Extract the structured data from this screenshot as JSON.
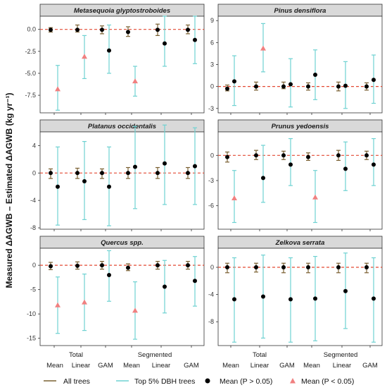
{
  "colors": {
    "all_trees": "#7a6032",
    "top5": "#6fd2d2",
    "mean_ns": "#000000",
    "mean_sig": "#f08080",
    "zero_line": "#e34a33"
  },
  "y_axis_label": "Measured ΔAGWB – Estimated ΔAGWB (kg yr⁻¹)",
  "x_axis": {
    "method_labels": [
      "Mean",
      "Linear",
      "GAM",
      "Mean",
      "Linear",
      "GAM"
    ],
    "group_labels": [
      "Total",
      "Segmented"
    ]
  },
  "legend": {
    "all_trees": "All trees",
    "top5": "Top 5% DBH trees",
    "mean_ns": "Mean (P > 0.05)",
    "mean_sig": "Mean (P < 0.05)"
  },
  "chart_data": [
    {
      "type": "errorbar",
      "title": "Metasequoia glyptostroboides",
      "ylim": [
        -9.5,
        1.5
      ],
      "yticks": [
        0.0,
        -2.5,
        -5.0,
        -7.5
      ],
      "ytick_labels": [
        "0.0",
        "-2.5",
        "-5.0",
        "-7.5"
      ],
      "categories": [
        "Total Mean",
        "Total Linear",
        "Total GAM",
        "Segmented Mean",
        "Segmented Linear",
        "Segmented GAM"
      ],
      "all_trees": [
        {
          "lo": -0.3,
          "hi": 0.2,
          "mean": -0.05
        },
        {
          "lo": -0.3,
          "hi": 0.5,
          "mean": -0.05
        },
        {
          "lo": -0.5,
          "hi": 0.4,
          "mean": -0.05
        },
        {
          "lo": -0.8,
          "hi": 0.3,
          "mean": -0.3
        },
        {
          "lo": -0.7,
          "hi": 0.6,
          "mean": -0.05
        },
        {
          "lo": -0.5,
          "hi": 0.5,
          "mean": -0.05
        }
      ],
      "top5": [
        {
          "lo": -9.2,
          "hi": -4.1,
          "mean": -6.8,
          "sig": true
        },
        {
          "lo": -5.6,
          "hi": -0.7,
          "mean": -3.1,
          "sig": true
        },
        {
          "lo": -5.0,
          "hi": 0.5,
          "mean": -2.4,
          "sig": false
        },
        {
          "lo": -7.6,
          "hi": -4.2,
          "mean": -5.9,
          "sig": true
        },
        {
          "lo": -4.2,
          "hi": 1.5,
          "mean": -1.6,
          "sig": false
        },
        {
          "lo": -3.9,
          "hi": 1.5,
          "mean": -1.2,
          "sig": false
        }
      ]
    },
    {
      "type": "errorbar",
      "title": "Pinus densiflora",
      "ylim": [
        -3.6,
        9.6
      ],
      "yticks": [
        9,
        6,
        3,
        0,
        -3
      ],
      "ytick_labels": [
        "9",
        "6",
        "3",
        "0",
        "-3"
      ],
      "categories": [
        "Total Mean",
        "Total Linear",
        "Total GAM",
        "Segmented Mean",
        "Segmented Linear",
        "Segmented GAM"
      ],
      "all_trees": [
        {
          "lo": -0.6,
          "hi": 0.2,
          "mean": -0.3
        },
        {
          "lo": -0.5,
          "hi": 0.6,
          "mean": 0.0
        },
        {
          "lo": -0.3,
          "hi": 0.6,
          "mean": 0.0
        },
        {
          "lo": -0.5,
          "hi": 0.5,
          "mean": 0.0
        },
        {
          "lo": -0.6,
          "hi": 0.6,
          "mean": 0.0
        },
        {
          "lo": -0.5,
          "hi": 0.5,
          "mean": 0.0
        }
      ],
      "top5": [
        {
          "lo": -2.6,
          "hi": 4.2,
          "mean": 0.7,
          "sig": false
        },
        {
          "lo": 2.0,
          "hi": 8.6,
          "mean": 5.2,
          "sig": true
        },
        {
          "lo": -2.8,
          "hi": 3.8,
          "mean": 0.3,
          "sig": false
        },
        {
          "lo": -1.8,
          "hi": 5.0,
          "mean": 1.6,
          "sig": false
        },
        {
          "lo": -3.0,
          "hi": 3.4,
          "mean": 0.1,
          "sig": false
        },
        {
          "lo": -2.3,
          "hi": 4.3,
          "mean": 0.9,
          "sig": false
        }
      ]
    },
    {
      "type": "errorbar",
      "title": "Platanus occidentalis",
      "ylim": [
        -8.2,
        6.0
      ],
      "yticks": [
        4,
        0,
        -4,
        -8
      ],
      "ytick_labels": [
        "4",
        "0",
        "-4",
        "-8"
      ],
      "categories": [
        "Total Mean",
        "Total Linear",
        "Total GAM",
        "Segmented Mean",
        "Segmented Linear",
        "Segmented GAM"
      ],
      "all_trees": [
        {
          "lo": -0.8,
          "hi": 0.6,
          "mean": 0.0
        },
        {
          "lo": -0.8,
          "hi": 0.7,
          "mean": 0.0
        },
        {
          "lo": -0.8,
          "hi": 0.6,
          "mean": 0.0
        },
        {
          "lo": -0.8,
          "hi": 0.8,
          "mean": 0.0
        },
        {
          "lo": -0.8,
          "hi": 0.8,
          "mean": 0.0
        },
        {
          "lo": -0.8,
          "hi": 0.8,
          "mean": 0.0
        }
      ],
      "top5": [
        {
          "lo": -7.6,
          "hi": 3.8,
          "mean": -2.0,
          "sig": false
        },
        {
          "lo": -6.8,
          "hi": 4.6,
          "mean": -1.2,
          "sig": false
        },
        {
          "lo": -7.7,
          "hi": 3.8,
          "mean": -2.0,
          "sig": false
        },
        {
          "lo": -5.2,
          "hi": 6.8,
          "mean": 0.9,
          "sig": false
        },
        {
          "lo": -4.6,
          "hi": 7.0,
          "mean": 1.4,
          "sig": false
        },
        {
          "lo": -4.6,
          "hi": 6.6,
          "mean": 1.0,
          "sig": false
        }
      ]
    },
    {
      "type": "errorbar",
      "title": "Prunus yedoensis",
      "ylim": [
        -8.8,
        2.8
      ],
      "yticks": [
        0,
        -3,
        -6
      ],
      "ytick_labels": [
        "0",
        "-3",
        "-6"
      ],
      "categories": [
        "Total Mean",
        "Total Linear",
        "Total GAM",
        "Segmented Mean",
        "Segmented Linear",
        "Segmented GAM"
      ],
      "all_trees": [
        {
          "lo": -0.8,
          "hi": 0.4,
          "mean": -0.2
        },
        {
          "lo": -0.5,
          "hi": 0.6,
          "mean": 0.0
        },
        {
          "lo": -0.5,
          "hi": 0.5,
          "mean": 0.0
        },
        {
          "lo": -0.6,
          "hi": 0.3,
          "mean": -0.2
        },
        {
          "lo": -0.6,
          "hi": 0.6,
          "mean": 0.0
        },
        {
          "lo": -0.5,
          "hi": 0.5,
          "mean": 0.0
        }
      ],
      "top5": [
        {
          "lo": -8.0,
          "hi": -1.8,
          "mean": -5.1,
          "sig": true
        },
        {
          "lo": -5.6,
          "hi": 1.2,
          "mean": -2.7,
          "sig": false
        },
        {
          "lo": -3.6,
          "hi": 2.0,
          "mean": -1.1,
          "sig": false
        },
        {
          "lo": -8.0,
          "hi": -1.8,
          "mean": -5.0,
          "sig": true
        },
        {
          "lo": -4.2,
          "hi": 1.6,
          "mean": -1.6,
          "sig": false
        },
        {
          "lo": -3.6,
          "hi": 2.0,
          "mean": -1.1,
          "sig": false
        }
      ]
    },
    {
      "type": "errorbar",
      "title": "Quercus spp.",
      "ylim": [
        -16.5,
        3.5
      ],
      "yticks": [
        0,
        -5,
        -10,
        -15
      ],
      "ytick_labels": [
        "0",
        "-5",
        "-10",
        "-15"
      ],
      "categories": [
        "Total Mean",
        "Total Linear",
        "Total GAM",
        "Segmented Mean",
        "Segmented Linear",
        "Segmented GAM"
      ],
      "all_trees": [
        {
          "lo": -0.9,
          "hi": 0.6,
          "mean": -0.2
        },
        {
          "lo": -0.8,
          "hi": 0.7,
          "mean": -0.1
        },
        {
          "lo": -0.8,
          "hi": 0.8,
          "mean": 0.0
        },
        {
          "lo": -1.1,
          "hi": 0.3,
          "mean": -0.5
        },
        {
          "lo": -0.8,
          "hi": 0.8,
          "mean": 0.0
        },
        {
          "lo": -0.8,
          "hi": 0.8,
          "mean": 0.0
        }
      ],
      "top5": [
        {
          "lo": -14.0,
          "hi": -2.4,
          "mean": -8.2,
          "sig": true
        },
        {
          "lo": -13.4,
          "hi": -1.8,
          "mean": -7.6,
          "sig": true
        },
        {
          "lo": -7.4,
          "hi": 3.0,
          "mean": -2.0,
          "sig": false
        },
        {
          "lo": -15.2,
          "hi": -3.4,
          "mean": -9.3,
          "sig": true
        },
        {
          "lo": -9.8,
          "hi": 1.0,
          "mean": -4.4,
          "sig": false
        },
        {
          "lo": -8.4,
          "hi": 1.8,
          "mean": -3.2,
          "sig": false
        }
      ]
    },
    {
      "type": "errorbar",
      "title": "Zelkova serrata",
      "ylim": [
        -11.5,
        2.8
      ],
      "yticks": [
        0,
        -4,
        -8
      ],
      "ytick_labels": [
        "0",
        "-4",
        "-8"
      ],
      "categories": [
        "Total Mean",
        "Total Linear",
        "Total GAM",
        "Segmented Mean",
        "Segmented Linear",
        "Segmented GAM"
      ],
      "all_trees": [
        {
          "lo": -0.8,
          "hi": 0.6,
          "mean": 0.0
        },
        {
          "lo": -0.7,
          "hi": 0.6,
          "mean": 0.0
        },
        {
          "lo": -0.8,
          "hi": 0.6,
          "mean": 0.0
        },
        {
          "lo": -0.8,
          "hi": 0.6,
          "mean": 0.0
        },
        {
          "lo": -0.8,
          "hi": 0.6,
          "mean": 0.0
        },
        {
          "lo": -0.8,
          "hi": 0.6,
          "mean": 0.0
        }
      ],
      "top5": [
        {
          "lo": -11.0,
          "hi": 1.4,
          "mean": -4.7,
          "sig": false
        },
        {
          "lo": -10.4,
          "hi": 1.8,
          "mean": -4.3,
          "sig": false
        },
        {
          "lo": -11.0,
          "hi": 1.4,
          "mean": -4.7,
          "sig": false
        },
        {
          "lo": -10.8,
          "hi": 1.6,
          "mean": -4.6,
          "sig": false
        },
        {
          "lo": -9.0,
          "hi": 2.1,
          "mean": -3.5,
          "sig": false
        },
        {
          "lo": -11.0,
          "hi": 1.4,
          "mean": -4.6,
          "sig": false
        }
      ]
    }
  ]
}
